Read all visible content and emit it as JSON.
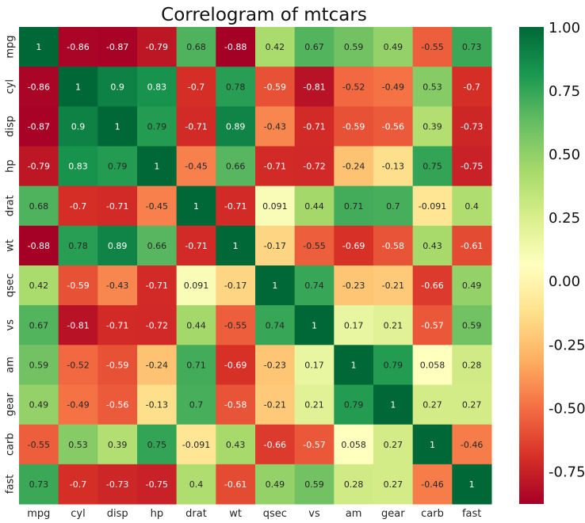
{
  "chart_data": {
    "type": "heatmap",
    "title": "Correlogram of mtcars",
    "xlabel": "",
    "ylabel": "",
    "x_labels": [
      "mpg",
      "cyl",
      "disp",
      "hp",
      "drat",
      "wt",
      "qsec",
      "vs",
      "am",
      "gear",
      "carb",
      "fast"
    ],
    "y_labels": [
      "mpg",
      "cyl",
      "disp",
      "hp",
      "drat",
      "wt",
      "qsec",
      "vs",
      "am",
      "gear",
      "carb",
      "fast"
    ],
    "values": [
      [
        1,
        -0.86,
        -0.87,
        -0.79,
        0.68,
        -0.88,
        0.42,
        0.67,
        0.59,
        0.49,
        -0.55,
        0.73
      ],
      [
        -0.86,
        1,
        0.9,
        0.83,
        -0.7,
        0.78,
        -0.59,
        -0.81,
        -0.52,
        -0.49,
        0.53,
        -0.7
      ],
      [
        -0.87,
        0.9,
        1,
        0.79,
        -0.71,
        0.89,
        -0.43,
        -0.71,
        -0.59,
        -0.56,
        0.39,
        -0.73
      ],
      [
        -0.79,
        0.83,
        0.79,
        1,
        -0.45,
        0.66,
        -0.71,
        -0.72,
        -0.24,
        -0.13,
        0.75,
        -0.75
      ],
      [
        0.68,
        -0.7,
        -0.71,
        -0.45,
        1,
        -0.71,
        0.091,
        0.44,
        0.71,
        0.7,
        -0.091,
        0.4
      ],
      [
        -0.88,
        0.78,
        0.89,
        0.66,
        -0.71,
        1,
        -0.17,
        -0.55,
        -0.69,
        -0.58,
        0.43,
        -0.61
      ],
      [
        0.42,
        -0.59,
        -0.43,
        -0.71,
        0.091,
        -0.17,
        1,
        0.74,
        -0.23,
        -0.21,
        -0.66,
        0.49
      ],
      [
        0.67,
        -0.81,
        -0.71,
        -0.72,
        0.44,
        -0.55,
        0.74,
        1,
        0.17,
        0.21,
        -0.57,
        0.59
      ],
      [
        0.59,
        -0.52,
        -0.59,
        -0.24,
        0.71,
        -0.69,
        -0.23,
        0.17,
        1,
        0.79,
        0.058,
        0.28
      ],
      [
        0.49,
        -0.49,
        -0.56,
        -0.13,
        0.7,
        -0.58,
        -0.21,
        0.21,
        0.79,
        1,
        0.27,
        0.27
      ],
      [
        -0.55,
        0.53,
        0.39,
        0.75,
        -0.091,
        0.43,
        -0.66,
        -0.57,
        0.058,
        0.27,
        1,
        -0.46
      ],
      [
        0.73,
        -0.7,
        -0.73,
        -0.75,
        0.4,
        -0.61,
        0.49,
        0.59,
        0.28,
        0.27,
        -0.46,
        1
      ]
    ],
    "colormap": "RdYlGn",
    "colorbar": {
      "vmin": -0.88,
      "vmax": 1.0,
      "ticks": [
        1.0,
        0.75,
        0.5,
        0.25,
        0.0,
        -0.25,
        -0.5,
        -0.75
      ],
      "tick_labels": [
        "1.00",
        "0.75",
        "0.50",
        "0.25",
        "0.00",
        "-0.25",
        "-0.50",
        "-0.75"
      ]
    },
    "annotations": true,
    "grid": false
  }
}
